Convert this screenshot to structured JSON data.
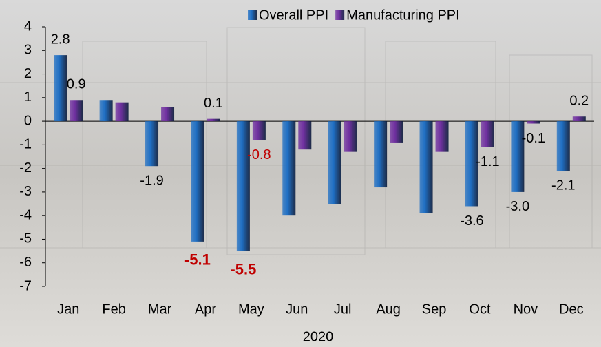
{
  "chart_data": {
    "type": "bar",
    "x_label": "2020",
    "categories": [
      "Jan",
      "Feb",
      "Mar",
      "Apr",
      "May",
      "Jun",
      "Jul",
      "Aug",
      "Sep",
      "Oct",
      "Nov",
      "Dec"
    ],
    "series": [
      {
        "name": "Overall PPI",
        "color": "#1f6fc4",
        "values": [
          2.8,
          0.9,
          -1.9,
          -5.1,
          -5.5,
          -4.0,
          -3.5,
          -2.8,
          -3.9,
          -3.6,
          -3.0,
          -2.1
        ],
        "value_labels": [
          "2.8",
          null,
          "-1.9",
          "-5.1",
          "-5.5",
          null,
          null,
          null,
          null,
          "-3.6",
          "-3.0",
          "-2.1"
        ],
        "label_colors": [
          null,
          null,
          null,
          "#c00000",
          "#c00000",
          null,
          null,
          null,
          null,
          null,
          null,
          null
        ],
        "label_bold": [
          false,
          false,
          false,
          true,
          true,
          false,
          false,
          false,
          false,
          false,
          false,
          false
        ]
      },
      {
        "name": "Manufacturing PPI",
        "color": "#7030a0",
        "values": [
          0.9,
          0.8,
          0.6,
          0.1,
          -0.8,
          -1.2,
          -1.3,
          -0.9,
          -1.3,
          -1.1,
          -0.1,
          0.2
        ],
        "value_labels": [
          "0.9",
          null,
          null,
          "0.1",
          "-0.8",
          null,
          null,
          null,
          null,
          "-1.1",
          "-0.1",
          "0.2"
        ],
        "label_colors": [
          null,
          null,
          null,
          null,
          "#c00000",
          null,
          null,
          null,
          null,
          null,
          null,
          null
        ],
        "label_bold": [
          false,
          false,
          false,
          false,
          false,
          false,
          false,
          false,
          false,
          false,
          false,
          false
        ]
      }
    ],
    "ylim": [
      -7,
      4
    ],
    "yticks": [
      -7,
      -6,
      -5,
      -4,
      -3,
      -2,
      -1,
      0,
      1,
      2,
      3,
      4
    ],
    "legend": "top-right"
  }
}
